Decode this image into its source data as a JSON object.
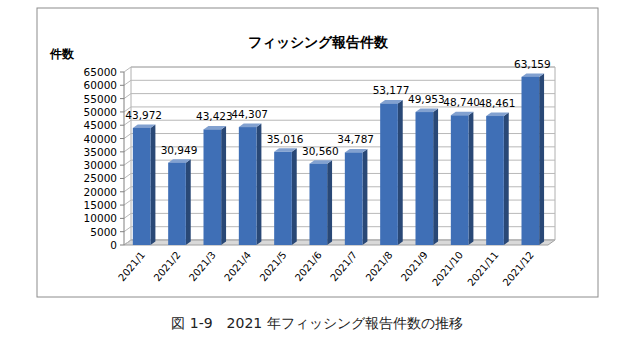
{
  "chart_data": {
    "type": "bar",
    "title": "フィッシング報告件数",
    "y_label": "件数",
    "categories": [
      "2021/1",
      "2021/2",
      "2021/3",
      "2021/4",
      "2021/5",
      "2021/6",
      "2021/7",
      "2021/8",
      "2021/9",
      "2021/10",
      "2021/11",
      "2021/12"
    ],
    "values": [
      43972,
      30949,
      43423,
      44307,
      35016,
      30560,
      34787,
      53177,
      49953,
      48740,
      48461,
      63159
    ],
    "value_labels": [
      "43,972",
      "30,949",
      "43,423",
      "44,307",
      "35,016",
      "30,560",
      "34,787",
      "53,177",
      "49,953",
      "48,740",
      "48,461",
      "63,159"
    ],
    "color": "#3f6fb6",
    "ylim": [
      0,
      65000
    ],
    "yticks": [
      0,
      5000,
      10000,
      15000,
      20000,
      25000,
      30000,
      35000,
      40000,
      45000,
      50000,
      55000,
      60000,
      65000
    ],
    "grid": true,
    "data_labels": true,
    "annotations": [
      "図 1-9　2021 年フィッシング報告件数の推移"
    ]
  }
}
